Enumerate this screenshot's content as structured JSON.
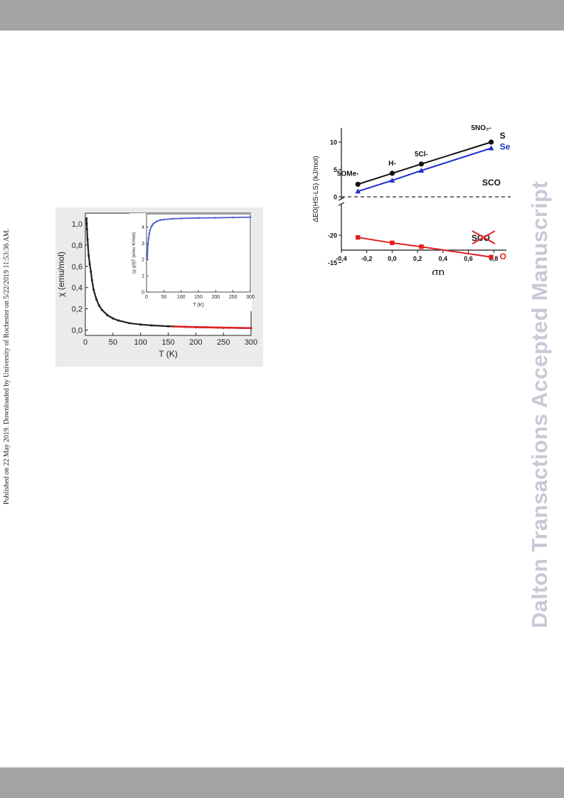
{
  "page": {
    "side_note": "Published on 22 May 2019. Downloaded by University of Rochester on 5/22/2019 11:53:36 AM.",
    "watermark": "Dalton Transactions Accepted Manuscript"
  },
  "chart_data": [
    {
      "type": "scatter",
      "panel": "main",
      "xlabel": "T (K)",
      "ylabel": "χ (emu/mol)",
      "xlim": [
        0,
        300
      ],
      "ylim": [
        -0.05,
        1.1
      ],
      "xticks": [
        "0",
        "50",
        "100",
        "150",
        "200",
        "250",
        "300"
      ],
      "yticks": [
        "0,0",
        "0,2",
        "0,4",
        "0,6",
        "0,8",
        "1,0"
      ],
      "series": [
        {
          "color": "#222222",
          "x": [
            2,
            3,
            4,
            6,
            8,
            10,
            12,
            15,
            20,
            25,
            30,
            40,
            50,
            60,
            80,
            100,
            120,
            150,
            200,
            250,
            300
          ],
          "y": [
            1.05,
            0.95,
            0.85,
            0.7,
            0.62,
            0.55,
            0.47,
            0.38,
            0.29,
            0.23,
            0.19,
            0.14,
            0.11,
            0.09,
            0.065,
            0.052,
            0.044,
            0.036,
            0.027,
            0.022,
            0.018
          ]
        },
        {
          "color": "#e02020",
          "x": [
            160,
            180,
            200,
            220,
            240,
            260,
            280,
            300
          ],
          "y": [
            0.034,
            0.031,
            0.028,
            0.026,
            0.024,
            0.022,
            0.02,
            0.019
          ]
        }
      ]
    },
    {
      "type": "scatter",
      "panel": "inset",
      "xlabel": "T (K)",
      "ylabel": "(χ-χ0)T (emu K/mol)",
      "xlim": [
        0,
        300
      ],
      "ylim": [
        0,
        4.8
      ],
      "xticks": [
        "0",
        "50",
        "100",
        "150",
        "200",
        "250",
        "300"
      ],
      "yticks": [
        "0",
        "1",
        "2",
        "3",
        "4"
      ],
      "series": [
        {
          "color": "#4a5bd4",
          "x": [
            2,
            4,
            6,
            8,
            10,
            15,
            20,
            30,
            40,
            50,
            75,
            100,
            150,
            200,
            250,
            300
          ],
          "y": [
            2.0,
            2.9,
            3.3,
            3.6,
            3.8,
            4.05,
            4.2,
            4.35,
            4.42,
            4.45,
            4.5,
            4.52,
            4.55,
            4.56,
            4.58,
            4.6
          ]
        }
      ]
    },
    {
      "type": "line",
      "xlabel": "σp",
      "ylabel": "ΔE0(HS-LS) (kJ/mol)",
      "xlim": [
        -0.4,
        0.9
      ],
      "xticks": [
        "-0,4",
        "-0,2",
        "0,0",
        "0,2",
        "0,4",
        "0,6",
        "0,8"
      ],
      "yticks_upper": [
        "0",
        "5",
        "10"
      ],
      "yticks_lower": [
        "-15",
        "-20"
      ],
      "x": [
        -0.27,
        0.0,
        0.23,
        0.78
      ],
      "point_labels": [
        "5OMe-",
        "H-",
        "5Cl-",
        "5NO₂-"
      ],
      "series": [
        {
          "name": "S",
          "color": "#111111",
          "marker": "circle",
          "y": [
            2.3,
            4.3,
            6.0,
            10.0
          ]
        },
        {
          "name": "Se",
          "color": "#1f2fd0",
          "marker": "triangle",
          "y": [
            1.0,
            3.0,
            4.8,
            8.9
          ]
        },
        {
          "name": "O",
          "color": "#e02020",
          "marker": "square",
          "y": [
            -19.6,
            -18.6,
            -17.9,
            -16.0
          ]
        }
      ],
      "annotations": [
        "SCO",
        "SCO"
      ],
      "dashed_line_y": 0
    }
  ]
}
